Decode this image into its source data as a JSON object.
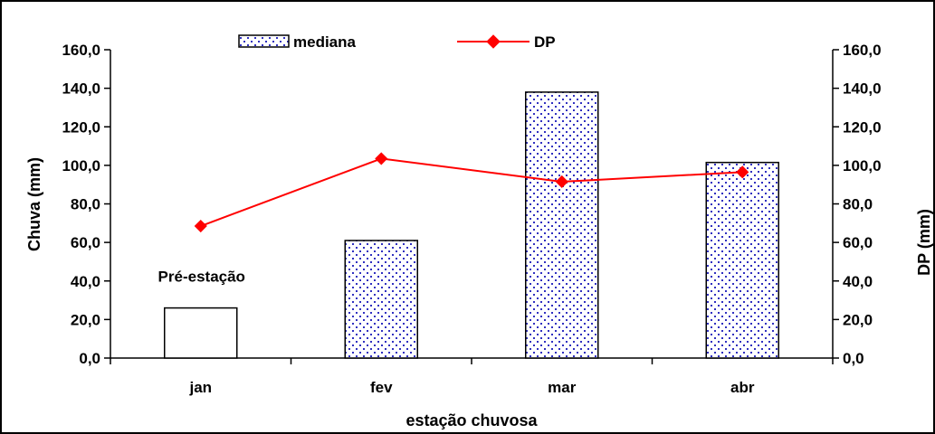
{
  "chart_data": {
    "type": "bar",
    "categories": [
      "jan",
      "fev",
      "mar",
      "abr"
    ],
    "series": [
      {
        "name": "mediana",
        "type": "bar",
        "values": [
          26.0,
          61.0,
          138.0,
          101.5
        ],
        "patterned": [
          false,
          true,
          true,
          true
        ],
        "color": "#2e2eb8"
      },
      {
        "name": "DP",
        "type": "line",
        "axis": "right",
        "values": [
          68.5,
          103.5,
          91.5,
          96.5
        ],
        "color": "#ff0000"
      }
    ],
    "xlabel": "estação chuvosa",
    "ylabel_left": "Chuva (mm)",
    "ylabel_right": "DP (mm)",
    "ylim": [
      0,
      160
    ],
    "yticks": [
      "0,0",
      "20,0",
      "40,0",
      "60,0",
      "80,0",
      "100,0",
      "120,0",
      "140,0",
      "160,0"
    ],
    "annotations": [
      {
        "text": "Pré-estação",
        "category": "jan"
      }
    ],
    "legend": {
      "position": "top",
      "entries": [
        "mediana",
        "DP"
      ]
    },
    "grid": false
  }
}
